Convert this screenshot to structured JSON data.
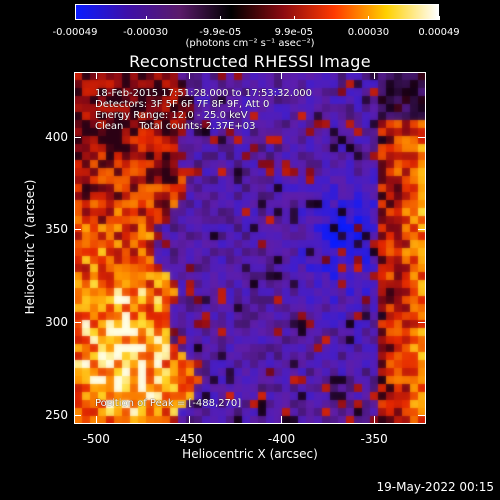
{
  "colorbar": {
    "ticks": [
      "-0.00049",
      "-0.00030",
      "-9.9e-05",
      "9.9e-05",
      "0.00030",
      "0.00049"
    ],
    "tick_values": [
      -0.00049,
      -0.0003,
      -9.9e-05,
      9.9e-05,
      0.0003,
      0.00049
    ],
    "label": "(photons cm⁻² s⁻¹ asec⁻²)",
    "colors": [
      "#0a1cff",
      "#3d10a8",
      "#5a1a6a",
      "#000000",
      "#8a0a10",
      "#ff3a00",
      "#ffd000",
      "#ffffff"
    ]
  },
  "chart_data": {
    "type": "heatmap",
    "title": "Reconstructed RHESSI Image",
    "xlabel": "Heliocentric X (arcsec)",
    "ylabel": "Heliocentric Y (arcsec)",
    "xlim": [
      -512,
      -322
    ],
    "ylim": [
      245,
      435
    ],
    "x_ticks": [
      -500,
      -450,
      -400,
      -350
    ],
    "y_ticks": [
      250,
      300,
      350,
      400
    ],
    "x_tick_labels": [
      "-500",
      "-450",
      "-400",
      "-350"
    ],
    "y_tick_labels": [
      "250",
      "300",
      "350",
      "400"
    ],
    "peak_position": [
      -488,
      270
    ],
    "colormap": "rhessi"
  },
  "info": {
    "time_range": "18-Feb-2015 17:51:28.000 to 17:53:32.000",
    "detectors": "Detectors: 3F 5F 6F 7F 8F 9F, Att 0",
    "energy": "Energy Range: 12.0 - 25.0 keV",
    "method": "Clean     Total counts: 2.37E+03",
    "peak": "Position of Peak = [-488,270]"
  },
  "footer": {
    "timestamp": "19-May-2022 00:15"
  }
}
